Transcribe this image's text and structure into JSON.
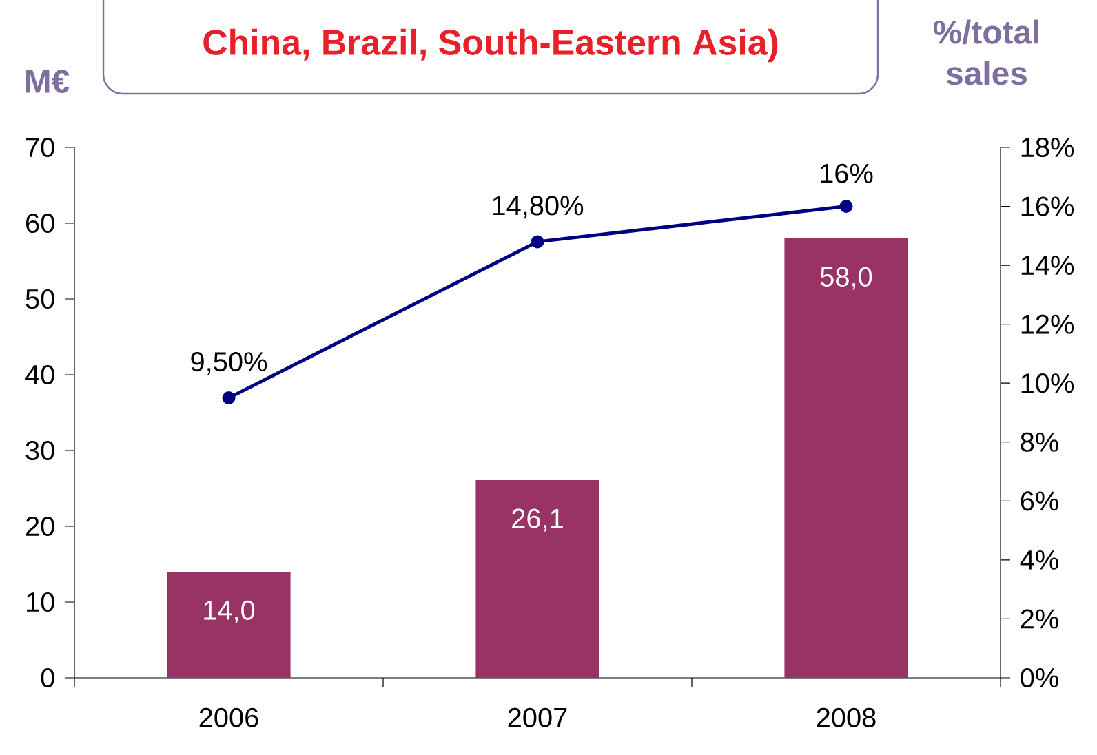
{
  "chart_data": {
    "type": "bar",
    "title": "China, Brazil, South-Eastern Asia)",
    "ylabel": "M€",
    "y2label": "%/total sales",
    "categories": [
      "2006",
      "2007",
      "2008"
    ],
    "series": [
      {
        "color": "#993366",
        "values": [
          14.0,
          26.1,
          58.0
        ],
        "value_labels": [
          "14,0",
          "26,1",
          "58,0"
        ]
      },
      {
        "type": "line",
        "axis": "y2",
        "color": "#000080",
        "marker": "circle",
        "values": [
          9.5,
          14.8,
          16
        ],
        "value_labels": [
          "9,50%",
          "14,80%",
          "16%"
        ]
      }
    ],
    "ylim": [
      0,
      70
    ],
    "yticks": [
      0,
      10,
      20,
      30,
      40,
      50,
      60,
      70
    ],
    "y2lim": [
      0,
      18
    ],
    "y2ticks": [
      {
        "value": 0,
        "label": "0%"
      },
      {
        "value": 2,
        "label": "2%"
      },
      {
        "value": 4,
        "label": "4%"
      },
      {
        "value": 6,
        "label": "6%"
      },
      {
        "value": 8,
        "label": "8%"
      },
      {
        "value": 10,
        "label": "10%"
      },
      {
        "value": 12,
        "label": "12%"
      },
      {
        "value": 14,
        "label": "14%"
      },
      {
        "value": 16,
        "label": "16%"
      },
      {
        "value": 18,
        "label": "18%"
      }
    ]
  }
}
